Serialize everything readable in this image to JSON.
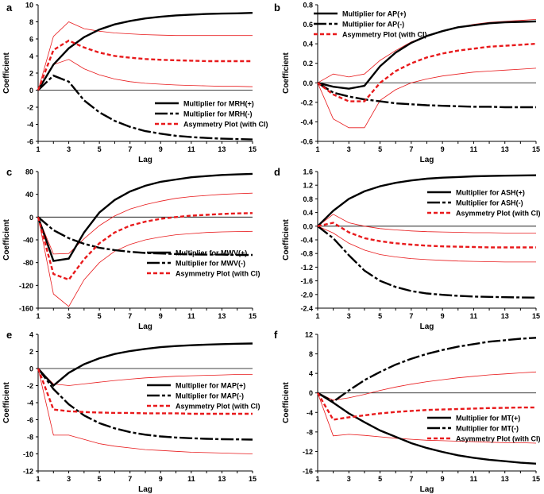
{
  "figure": {
    "x_categories": [
      1,
      2,
      3,
      4,
      5,
      6,
      7,
      8,
      9,
      10,
      11,
      12,
      13,
      14,
      15
    ],
    "x_tick_labels": [
      "1",
      "3",
      "5",
      "7",
      "9",
      "11",
      "13",
      "15"
    ],
    "colors": {
      "positive": "#000000",
      "negative": "#000000",
      "asymmetry": "#e8191b",
      "ci": "#e8191b",
      "zero_line": "#000000"
    }
  },
  "chart_data": [
    {
      "type": "line",
      "panel": "a",
      "xlabel": "Lag",
      "ylabel": "Coefficient",
      "ylim": [
        -6,
        10
      ],
      "yticks": [
        "-6",
        "-4",
        "-2",
        "0",
        "2",
        "4",
        "6",
        "8",
        "10"
      ],
      "legend_position": "bottom-right",
      "series": [
        {
          "name": "Multiplier for MRH(+)",
          "style": "solid",
          "values": [
            0,
            3.0,
            4.9,
            6.2,
            7.1,
            7.7,
            8.1,
            8.4,
            8.6,
            8.75,
            8.85,
            8.92,
            8.97,
            9.0,
            9.05
          ]
        },
        {
          "name": "Multiplier for MRH(-)",
          "style": "dashed",
          "values": [
            0,
            1.7,
            1.0,
            -1.2,
            -2.6,
            -3.6,
            -4.3,
            -4.8,
            -5.1,
            -5.35,
            -5.5,
            -5.6,
            -5.68,
            -5.73,
            -5.78
          ]
        },
        {
          "name": "Asymmetry Plot (with CI)",
          "style": "dashed-red",
          "values": [
            0,
            4.7,
            5.8,
            5.0,
            4.4,
            4.0,
            3.8,
            3.65,
            3.55,
            3.5,
            3.45,
            3.4,
            3.4,
            3.4,
            3.4
          ]
        }
      ],
      "ci_upper": [
        0,
        6.3,
        8.0,
        7.2,
        6.9,
        6.7,
        6.6,
        6.5,
        6.45,
        6.4,
        6.4,
        6.4,
        6.4,
        6.4,
        6.4
      ],
      "ci_lower": [
        0,
        3.0,
        3.6,
        2.5,
        1.8,
        1.3,
        1.0,
        0.8,
        0.7,
        0.6,
        0.55,
        0.5,
        0.45,
        0.45,
        0.4
      ]
    },
    {
      "type": "line",
      "panel": "b",
      "xlabel": "Lag",
      "ylabel": "Coefficient",
      "ylim": [
        -0.6,
        0.8
      ],
      "yticks": [
        "-0.6",
        "-0.4",
        "-0.2",
        "0.0",
        "0.2",
        "0.4",
        "0.6",
        "0.8"
      ],
      "legend_position": "top-left",
      "series": [
        {
          "name": "Multiplier for AP(+)",
          "style": "solid",
          "values": [
            0,
            -0.04,
            -0.06,
            -0.03,
            0.17,
            0.31,
            0.41,
            0.48,
            0.53,
            0.57,
            0.59,
            0.61,
            0.62,
            0.625,
            0.63
          ]
        },
        {
          "name": "Multiplier for AP(-)",
          "style": "dashed",
          "values": [
            0,
            -0.1,
            -0.14,
            -0.17,
            -0.19,
            -0.21,
            -0.22,
            -0.23,
            -0.235,
            -0.24,
            -0.245,
            -0.245,
            -0.25,
            -0.25,
            -0.25
          ]
        },
        {
          "name": "Asymmetry Plot (with CI)",
          "style": "dashed-red",
          "values": [
            0,
            -0.12,
            -0.19,
            -0.19,
            0.0,
            0.12,
            0.2,
            0.26,
            0.3,
            0.33,
            0.35,
            0.37,
            0.38,
            0.39,
            0.4
          ]
        }
      ],
      "ci_upper": [
        0,
        0.09,
        0.06,
        0.09,
        0.23,
        0.33,
        0.42,
        0.48,
        0.53,
        0.57,
        0.6,
        0.62,
        0.63,
        0.64,
        0.65
      ],
      "ci_lower": [
        0,
        -0.37,
        -0.46,
        -0.46,
        -0.18,
        -0.07,
        0.0,
        0.04,
        0.07,
        0.09,
        0.11,
        0.12,
        0.13,
        0.14,
        0.15
      ]
    },
    {
      "type": "line",
      "panel": "c",
      "xlabel": "Lag",
      "ylabel": "Coefficient",
      "ylim": [
        -160,
        80
      ],
      "yticks": [
        "-160",
        "-120",
        "-80",
        "-40",
        "0",
        "40",
        "80"
      ],
      "legend_position": "bottom-right",
      "series": [
        {
          "name": "Multiplier for MWV(+)",
          "style": "solid",
          "values": [
            0,
            -77,
            -73,
            -27,
            8,
            30,
            45,
            55,
            62,
            66,
            70,
            72,
            74,
            75,
            76
          ]
        },
        {
          "name": "Multiplier for MWV(-)",
          "style": "dashed",
          "values": [
            0,
            -23,
            -37,
            -47,
            -54,
            -58,
            -61,
            -63,
            -64,
            -65,
            -65.5,
            -66,
            -66,
            -66.5,
            -66.5
          ]
        },
        {
          "name": "Asymmetry Plot (with CI)",
          "style": "dashed-red",
          "values": [
            0,
            -100,
            -110,
            -74,
            -46,
            -27,
            -15,
            -8,
            -3,
            0,
            2.5,
            4,
            5.5,
            6.5,
            7
          ]
        }
      ],
      "ci_upper": [
        0,
        -65,
        -64,
        -38,
        -15,
        2,
        14,
        22,
        28,
        33,
        36,
        38,
        40,
        41,
        42
      ],
      "ci_lower": [
        0,
        -135,
        -157,
        -110,
        -80,
        -60,
        -48,
        -40,
        -35,
        -31,
        -29,
        -27,
        -26,
        -25.5,
        -25
      ]
    },
    {
      "type": "line",
      "panel": "d",
      "xlabel": "Lag",
      "ylabel": "Coefficient",
      "ylim": [
        -2.4,
        1.6
      ],
      "yticks": [
        "-2.4",
        "-2.0",
        "-1.6",
        "-1.2",
        "-0.8",
        "-0.4",
        "0.0",
        "0.4",
        "0.8",
        "1.2",
        "1.6"
      ],
      "legend_position": "top-right",
      "series": [
        {
          "name": "Multiplier for ASH(+)",
          "style": "solid",
          "values": [
            0,
            0.45,
            0.8,
            1.02,
            1.17,
            1.27,
            1.34,
            1.39,
            1.42,
            1.44,
            1.46,
            1.47,
            1.48,
            1.485,
            1.49
          ]
        },
        {
          "name": "Multiplier for ASH(-)",
          "style": "dashed",
          "values": [
            0,
            -0.35,
            -0.85,
            -1.3,
            -1.6,
            -1.78,
            -1.9,
            -1.97,
            -2.01,
            -2.04,
            -2.06,
            -2.07,
            -2.08,
            -2.085,
            -2.09
          ]
        },
        {
          "name": "Asymmetry Plot (with CI)",
          "style": "dashed-red",
          "values": [
            0,
            0.1,
            -0.18,
            -0.35,
            -0.44,
            -0.5,
            -0.54,
            -0.57,
            -0.59,
            -0.6,
            -0.61,
            -0.62,
            -0.62,
            -0.62,
            -0.62
          ]
        }
      ],
      "ci_upper": [
        0,
        0.35,
        0.1,
        0.0,
        -0.07,
        -0.11,
        -0.14,
        -0.16,
        -0.17,
        -0.18,
        -0.19,
        -0.19,
        -0.2,
        -0.2,
        -0.2
      ],
      "ci_lower": [
        0,
        -0.2,
        -0.5,
        -0.7,
        -0.83,
        -0.9,
        -0.95,
        -0.98,
        -1.0,
        -1.02,
        -1.03,
        -1.04,
        -1.05,
        -1.05,
        -1.05
      ]
    },
    {
      "type": "line",
      "panel": "e",
      "xlabel": "Lag",
      "ylabel": "Coefficient",
      "ylim": [
        -12,
        4
      ],
      "yticks": [
        "-12",
        "-10",
        "-8",
        "-6",
        "-4",
        "-2",
        "0",
        "2",
        "4"
      ],
      "legend_position": "right",
      "series": [
        {
          "name": "Multiplier for MAP(+)",
          "style": "solid",
          "values": [
            0,
            -2.0,
            -0.5,
            0.5,
            1.2,
            1.7,
            2.05,
            2.3,
            2.5,
            2.63,
            2.73,
            2.8,
            2.86,
            2.9,
            2.93
          ]
        },
        {
          "name": "Multiplier for MAP(-)",
          "style": "dashed",
          "values": [
            0,
            -2.4,
            -4.2,
            -5.5,
            -6.4,
            -7.0,
            -7.45,
            -7.75,
            -7.95,
            -8.08,
            -8.17,
            -8.23,
            -8.28,
            -8.3,
            -8.33
          ]
        },
        {
          "name": "Asymmetry Plot (with CI)",
          "style": "dashed-red",
          "values": [
            0,
            -4.8,
            -5.0,
            -5.1,
            -5.15,
            -5.2,
            -5.2,
            -5.25,
            -5.25,
            -5.25,
            -5.3,
            -5.3,
            -5.3,
            -5.3,
            -5.3
          ]
        }
      ],
      "ci_upper": [
        0,
        -1.8,
        -2.0,
        -1.8,
        -1.6,
        -1.4,
        -1.25,
        -1.1,
        -1.0,
        -0.9,
        -0.85,
        -0.8,
        -0.75,
        -0.7,
        -0.7
      ],
      "ci_lower": [
        0,
        -7.8,
        -7.8,
        -8.3,
        -8.8,
        -9.1,
        -9.3,
        -9.5,
        -9.6,
        -9.7,
        -9.8,
        -9.85,
        -9.9,
        -9.95,
        -10.0
      ]
    },
    {
      "type": "line",
      "panel": "f",
      "xlabel": "Lag",
      "ylabel": "Coefficient",
      "ylim": [
        -16,
        12
      ],
      "yticks": [
        "-16",
        "-12",
        "-8",
        "-4",
        "0",
        "4",
        "8",
        "12"
      ],
      "legend_position": "bottom-right",
      "series": [
        {
          "name": "Multiplier for MT(+)",
          "style": "solid",
          "values": [
            0,
            -2.0,
            -4.2,
            -6.0,
            -7.7,
            -9.0,
            -10.3,
            -11.3,
            -12.1,
            -12.8,
            -13.3,
            -13.7,
            -14.0,
            -14.3,
            -14.5
          ]
        },
        {
          "name": "Multiplier for MT(-)",
          "style": "dashed",
          "values": [
            0,
            -1.8,
            0.5,
            2.6,
            4.3,
            5.8,
            7.0,
            8.0,
            8.8,
            9.5,
            10.0,
            10.5,
            10.8,
            11.1,
            11.3
          ]
        },
        {
          "name": "Asymmetry Plot (with CI)",
          "style": "dashed-red",
          "values": [
            0,
            -5.5,
            -5.0,
            -4.6,
            -4.2,
            -3.9,
            -3.7,
            -3.5,
            -3.4,
            -3.3,
            -3.2,
            -3.1,
            -3.05,
            -3.0,
            -3.0
          ]
        }
      ],
      "ci_upper": [
        0,
        -1.5,
        -1.0,
        -0.3,
        0.5,
        1.2,
        1.8,
        2.3,
        2.7,
        3.1,
        3.4,
        3.7,
        3.9,
        4.1,
        4.3
      ],
      "ci_lower": [
        0,
        -8.8,
        -8.5,
        -8.7,
        -9.0,
        -9.3,
        -9.5,
        -9.7,
        -9.8,
        -9.9,
        -10.0,
        -10.1,
        -10.2,
        -10.2,
        -10.3
      ]
    }
  ]
}
